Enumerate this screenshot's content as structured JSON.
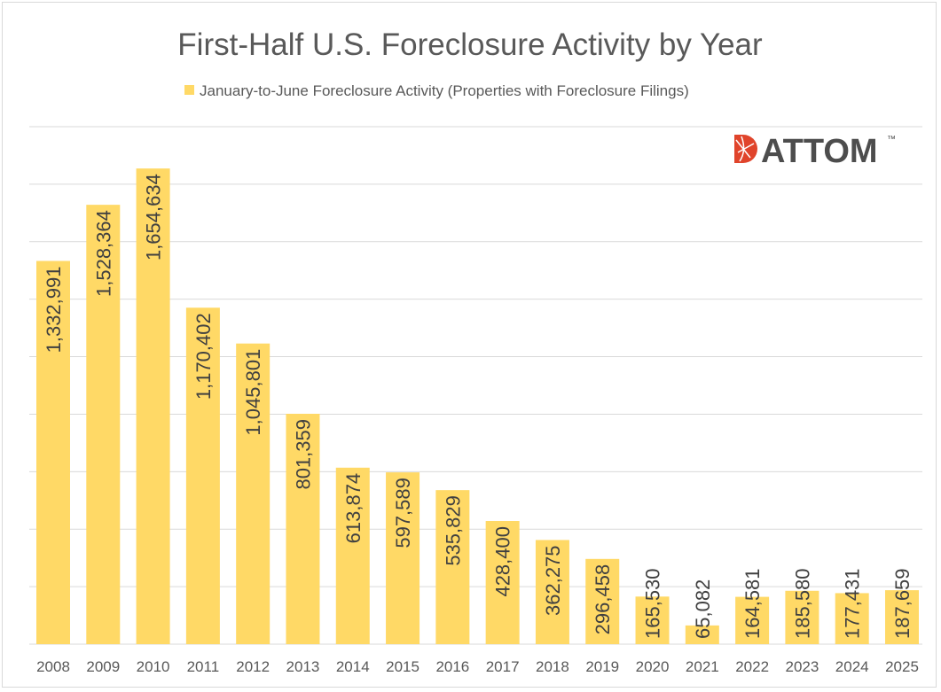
{
  "chart_data": {
    "type": "bar",
    "title": "First-Half U.S. Foreclosure Activity by Year",
    "legend": {
      "position": "top",
      "entries": [
        "January-to-June Foreclosure Activity (Properties with Foreclosure Filings)"
      ]
    },
    "categories": [
      "2008",
      "2009",
      "2010",
      "2011",
      "2012",
      "2013",
      "2014",
      "2015",
      "2016",
      "2017",
      "2018",
      "2019",
      "2020",
      "2021",
      "2022",
      "2023",
      "2024",
      "2025"
    ],
    "series": [
      {
        "name": "January-to-June Foreclosure Activity (Properties with Foreclosure Filings)",
        "values": [
          1332991,
          1528364,
          1654634,
          1170402,
          1045801,
          801359,
          613874,
          597589,
          535829,
          428400,
          362275,
          296458,
          165530,
          65082,
          164581,
          185580,
          177431,
          187659
        ],
        "labels": [
          "1,332,991",
          "1,528,364",
          "1,654,634",
          "1,170,402",
          "1,045,801",
          "801,359",
          "613,874",
          "597,589",
          "535,829",
          "428,400",
          "362,275",
          "296,458",
          "165,530",
          "65,082",
          "164,581",
          "185,580",
          "177,431",
          "187,659"
        ]
      }
    ],
    "ylim": [
      0,
      1800000
    ],
    "y_grid_step": 200000,
    "y_axis_labels_shown": false,
    "grid": true,
    "colors": {
      "bar": "#FFD966",
      "grid": "#D9D9D9",
      "text": "#595959"
    }
  },
  "logo": {
    "text": "ATTOM",
    "trademark": "™",
    "colors": {
      "mark": "#E0442B",
      "text": "#4D4D4D",
      "accent": "#C0272D"
    }
  }
}
